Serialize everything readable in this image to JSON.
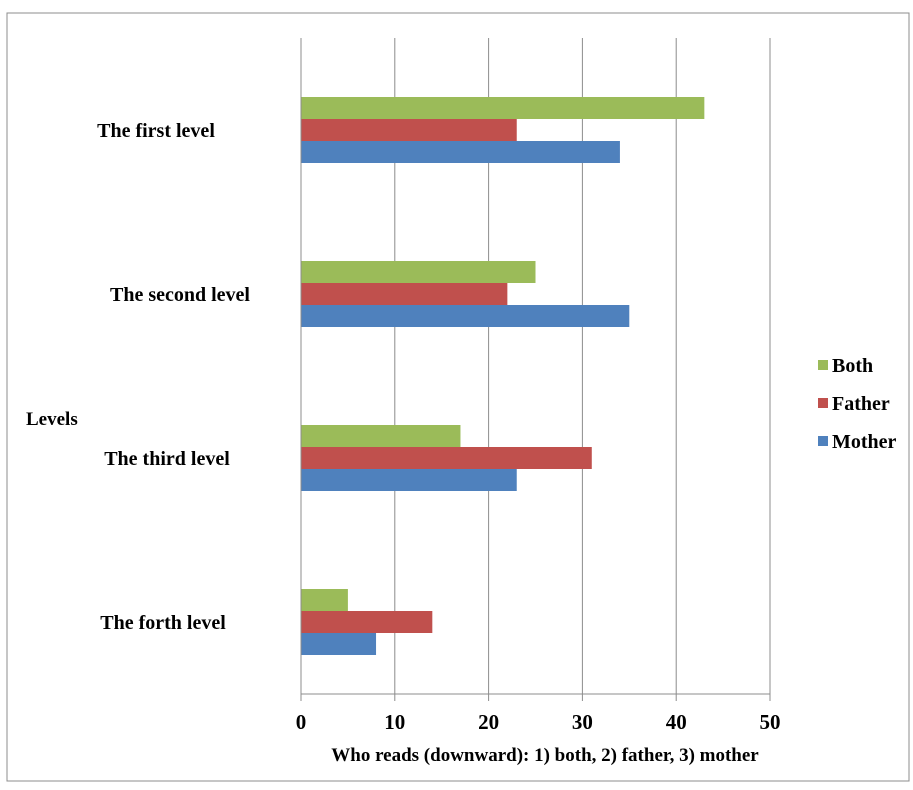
{
  "chart_data": {
    "type": "bar",
    "orientation": "horizontal",
    "categories": [
      "The first level",
      "The second level",
      "The third level",
      "The forth level"
    ],
    "series": [
      {
        "name": "Both",
        "color": "#9BBB59",
        "values": [
          43,
          25,
          17,
          5
        ]
      },
      {
        "name": "Father",
        "color": "#C0504D",
        "values": [
          23,
          22,
          31,
          14
        ]
      },
      {
        "name": "Mother",
        "color": "#4F81BD",
        "values": [
          34,
          35,
          23,
          8
        ]
      }
    ],
    "xlabel": "Who reads (downward): 1) both, 2) father, 3) mother",
    "ylabel": "Levels",
    "xlim": [
      0,
      50
    ],
    "xticks": [
      "0",
      "10",
      "20",
      "30",
      "40",
      "50"
    ],
    "grid": "vertical",
    "legend": "right"
  }
}
